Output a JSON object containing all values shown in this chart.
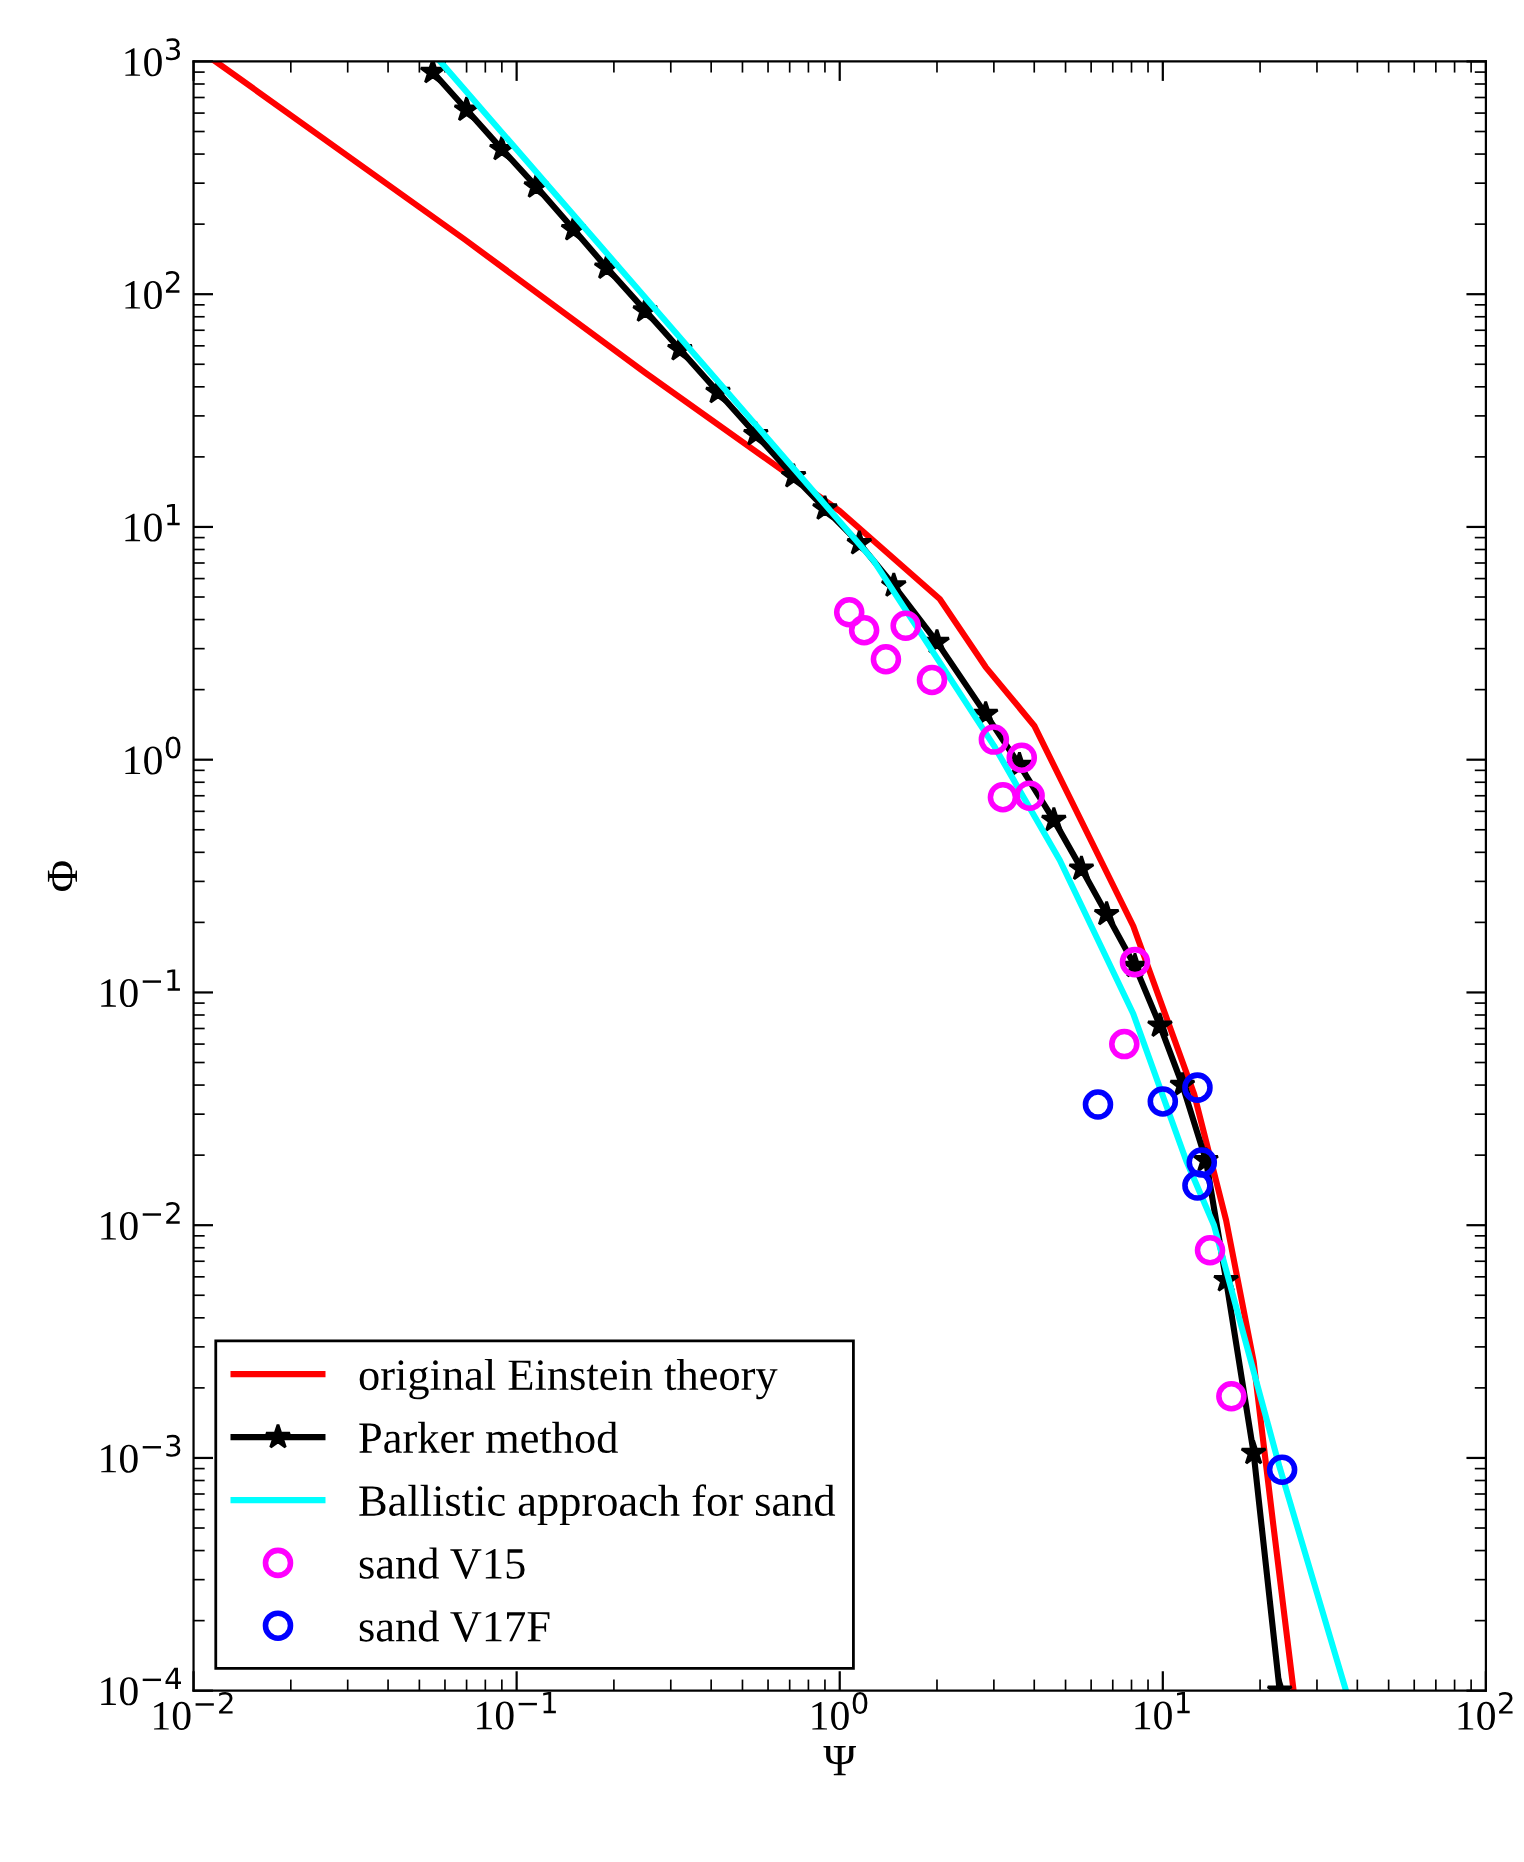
{
  "chart_data": {
    "type": "line",
    "xlabel": "Ψ",
    "ylabel": "Φ",
    "log": "xy",
    "legend": "bottom left",
    "grid": false,
    "xlim": [
      0.01,
      100
    ],
    "ylim": [
      0.0001,
      1000
    ],
    "xticks": [
      {
        "value": 0.01,
        "label": "10$^{−2}$"
      },
      {
        "value": 0.1,
        "label": "10$^{−1}$"
      },
      {
        "value": 1,
        "label": "10$^{0}$"
      },
      {
        "value": 10,
        "label": "10$^{1}$"
      },
      {
        "value": 100,
        "label": "10$^{2}$"
      }
    ],
    "yticks": [
      {
        "value": 0.0001,
        "label": "10$^{−4}$"
      },
      {
        "value": 0.001,
        "label": "10$^{−3}$"
      },
      {
        "value": 0.01,
        "label": "10$^{−2}$"
      },
      {
        "value": 0.1,
        "label": "10$^{−1}$"
      },
      {
        "value": 1,
        "label": "10$^{0}$"
      },
      {
        "value": 10,
        "label": "10$^{1}$"
      },
      {
        "value": 100,
        "label": "10$^{2}$"
      },
      {
        "value": 1000,
        "label": "10$^{3}$"
      }
    ],
    "series": [
      {
        "name": "original Einstein theory",
        "color": "#ff0000",
        "marker": "none",
        "x": [
          0.0117,
          0.069,
          0.25,
          1.0,
          2.04,
          2.83,
          4.0,
          8.1,
          12.5,
          15.7,
          19.1,
          22,
          25.4
        ],
        "values": [
          1000,
          172,
          46,
          11.7,
          4.9,
          2.5,
          1.4,
          0.193,
          0.0366,
          0.0105,
          0.0026,
          0.00051,
          0.0001
        ]
      },
      {
        "name": "Parker method",
        "color": "#000000",
        "marker": "star",
        "x": [
          0.055,
          0.07,
          0.09,
          0.115,
          0.15,
          0.19,
          0.25,
          0.32,
          0.42,
          0.55,
          0.72,
          0.9,
          1.15,
          1.47,
          2.0,
          2.83,
          3.6,
          4.6,
          5.6,
          6.7,
          8.2,
          9.8,
          11.5,
          13.6,
          15.7,
          19.1,
          23
        ],
        "values": [
          900,
          620,
          420,
          290,
          190,
          130,
          85,
          58,
          38,
          25,
          16.5,
          12,
          8.5,
          5.6,
          3.2,
          1.57,
          0.95,
          0.55,
          0.34,
          0.217,
          0.13,
          0.072,
          0.04,
          0.019,
          0.0058,
          0.00105,
          0.0001
        ]
      },
      {
        "name": "Ballistic approach for sand",
        "color": "#00ffff",
        "marker": "none",
        "x": [
          0.058,
          1.27,
          3.0,
          4.8,
          8.1,
          11.8,
          14.4,
          23,
          36.9
        ],
        "values": [
          1000,
          7.2,
          1.15,
          0.37,
          0.081,
          0.019,
          0.01,
          0.00091,
          0.0001
        ]
      },
      {
        "name": "sand V15",
        "color": "#ff00ff",
        "type": "scatter",
        "marker": "circle",
        "x": [
          1.07,
          1.19,
          1.6,
          1.39,
          1.93,
          3.0,
          3.66,
          3.2,
          3.87,
          8.2,
          7.6,
          14,
          16.3
        ],
        "values": [
          4.3,
          3.6,
          3.76,
          2.7,
          2.2,
          1.22,
          1.02,
          0.69,
          0.7,
          0.135,
          0.06,
          0.0078,
          0.00184
        ]
      },
      {
        "name": "sand V17F",
        "color": "#0000ff",
        "type": "scatter",
        "marker": "circle",
        "x": [
          6.3,
          10.0,
          12.8,
          13.2,
          12.8,
          23.4
        ],
        "values": [
          0.033,
          0.034,
          0.039,
          0.0186,
          0.0148,
          0.00089
        ]
      }
    ]
  }
}
